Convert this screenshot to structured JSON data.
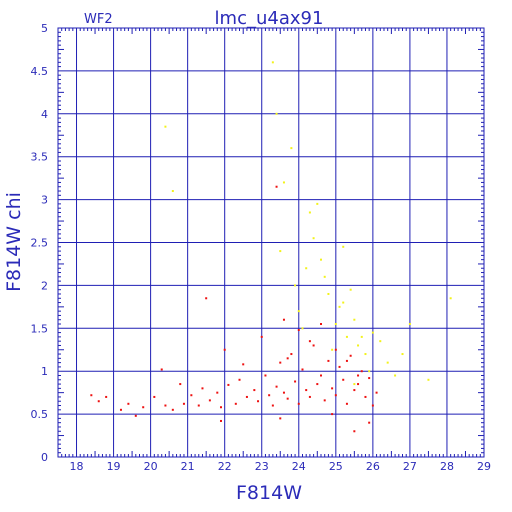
{
  "panel_label": "WF2",
  "chart_data": {
    "type": "scatter",
    "title": "lmc_u4ax91",
    "xlabel": "F814W",
    "ylabel": "F814W chi",
    "xlim": [
      17.5,
      29
    ],
    "ylim": [
      0,
      5
    ],
    "grid": true,
    "x_ticks": [
      "18",
      "19",
      "20",
      "21",
      "22",
      "23",
      "24",
      "25",
      "26",
      "27",
      "28",
      "29"
    ],
    "y_ticks": [
      "0",
      "0.5",
      "1",
      "1.5",
      "2",
      "2.5",
      "3",
      "3.5",
      "4",
      "4.5",
      "5"
    ],
    "colors": {
      "axes": "#1f1fb4",
      "red": "#ee1111",
      "yellow": "#f2f21a"
    },
    "series": [
      {
        "color": "#ee1111",
        "x": [
          18.4,
          18.6,
          18.8,
          19.2,
          19.4,
          19.6,
          19.8,
          20.1,
          20.3,
          20.4,
          20.6,
          20.8,
          20.9,
          21.1,
          21.3,
          21.4,
          21.6,
          21.8,
          21.9,
          22.1,
          22.3,
          22.4,
          22.6,
          22.8,
          22.9,
          23.1,
          23.2,
          23.3,
          23.4,
          23.5,
          23.6,
          23.7,
          23.8,
          23.9,
          24.0,
          24.1,
          24.2,
          24.3,
          24.4,
          24.5,
          24.6,
          24.7,
          24.8,
          24.9,
          25.0,
          25.1,
          25.2,
          25.3,
          25.4,
          25.5,
          25.6,
          25.7,
          25.8,
          25.9,
          26.0,
          26.1,
          21.5,
          22.0,
          22.5,
          23.0,
          23.4,
          23.6,
          24.0,
          24.3,
          24.6,
          25.0,
          25.3,
          25.6,
          25.9,
          23.7,
          24.9,
          25.5,
          23.5,
          21.9
        ],
        "y": [
          0.72,
          0.65,
          0.7,
          0.55,
          0.62,
          0.48,
          0.58,
          0.7,
          1.02,
          0.6,
          0.55,
          0.85,
          0.62,
          0.72,
          0.6,
          0.8,
          0.66,
          0.75,
          0.58,
          0.84,
          0.62,
          0.9,
          0.7,
          0.78,
          0.65,
          0.95,
          0.72,
          0.6,
          0.82,
          1.1,
          0.75,
          0.68,
          1.2,
          0.88,
          0.62,
          1.02,
          0.78,
          0.7,
          1.3,
          0.85,
          0.95,
          0.66,
          1.12,
          0.8,
          0.72,
          1.05,
          0.9,
          0.62,
          1.18,
          0.78,
          0.85,
          1.0,
          0.7,
          0.92,
          0.6,
          0.75,
          1.85,
          1.25,
          1.08,
          1.4,
          3.15,
          1.6,
          1.48,
          1.35,
          1.55,
          1.25,
          1.12,
          0.95,
          0.4,
          1.15,
          0.5,
          0.3,
          0.45,
          0.42
        ]
      },
      {
        "color": "#f2f21a",
        "x": [
          20.4,
          20.6,
          23.3,
          23.4,
          23.6,
          23.8,
          23.5,
          23.9,
          24.1,
          24.3,
          24.5,
          24.6,
          24.8,
          25.0,
          25.2,
          25.3,
          25.5,
          25.6,
          25.8,
          25.9,
          26.0,
          26.2,
          26.4,
          26.6,
          26.8,
          27.0,
          27.5,
          28.1,
          24.2,
          24.4,
          24.7,
          25.1,
          25.4,
          25.7,
          24.0,
          24.9,
          25.2,
          25.5
        ],
        "y": [
          3.85,
          3.1,
          4.6,
          4.0,
          3.2,
          3.6,
          2.4,
          2.0,
          1.5,
          2.85,
          2.95,
          2.3,
          1.9,
          1.55,
          1.8,
          1.4,
          1.6,
          1.3,
          1.2,
          1.0,
          1.45,
          1.35,
          1.1,
          0.95,
          1.2,
          1.55,
          0.9,
          1.85,
          2.2,
          2.55,
          2.1,
          1.75,
          1.95,
          1.4,
          1.7,
          1.25,
          2.45,
          0.85
        ]
      }
    ]
  }
}
